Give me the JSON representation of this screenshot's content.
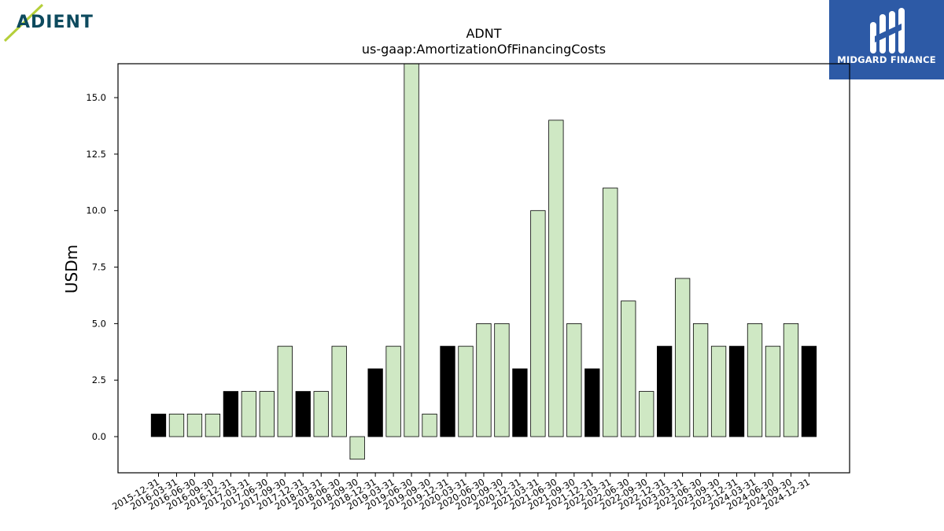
{
  "header": {
    "left_logo_text": "ADIENT",
    "right_logo_text": "MIDGARD FINANCE"
  },
  "colors": {
    "bar_light": "#cfe8c4",
    "bar_dark": "#000000",
    "axis": "#000000",
    "right_logo_bg": "#2d5aa6",
    "left_logo_text": "#0d4a5e",
    "left_logo_accent": "#b5cf3a"
  },
  "chart_data": {
    "type": "bar",
    "title": "ADNT",
    "subtitle": "us-gaap:AmortizationOfFinancingCosts",
    "xlabel": "",
    "ylabel": "USDm",
    "ylim": [
      -1.6,
      16.5
    ],
    "yticks": [
      "0.0",
      "2.5",
      "5.0",
      "7.5",
      "10.0",
      "12.5",
      "15.0"
    ],
    "grid": false,
    "categories": [
      "2015-12-31",
      "2016-03-31",
      "2016-06-30",
      "2016-09-30",
      "2016-12-31",
      "2017-03-31",
      "2017-06-30",
      "2017-09-30",
      "2017-12-31",
      "2018-03-31",
      "2018-06-30",
      "2018-09-30",
      "2018-12-31",
      "2019-03-31",
      "2019-06-30",
      "2019-09-30",
      "2019-12-31",
      "2020-03-31",
      "2020-06-30",
      "2020-09-30",
      "2020-12-31",
      "2021-03-31",
      "2021-06-30",
      "2021-09-30",
      "2021-12-31",
      "2022-03-31",
      "2022-06-30",
      "2022-09-30",
      "2022-12-31",
      "2023-03-31",
      "2023-06-30",
      "2023-09-30",
      "2023-12-31",
      "2024-03-31",
      "2024-06-30",
      "2024-09-30",
      "2024-12-31"
    ],
    "values": [
      1,
      1,
      1,
      1,
      2,
      2,
      2,
      4,
      2,
      2,
      4,
      -1,
      3,
      4,
      17,
      1,
      4,
      4,
      5,
      5,
      3,
      10,
      14,
      5,
      3,
      11,
      6,
      2,
      4,
      7,
      5,
      4,
      4,
      5,
      4,
      5,
      4
    ],
    "highlight": [
      true,
      false,
      false,
      false,
      true,
      false,
      false,
      false,
      true,
      false,
      false,
      false,
      true,
      false,
      false,
      false,
      true,
      false,
      false,
      false,
      true,
      false,
      false,
      false,
      true,
      false,
      false,
      false,
      true,
      false,
      false,
      false,
      true,
      false,
      false,
      false,
      true
    ]
  }
}
